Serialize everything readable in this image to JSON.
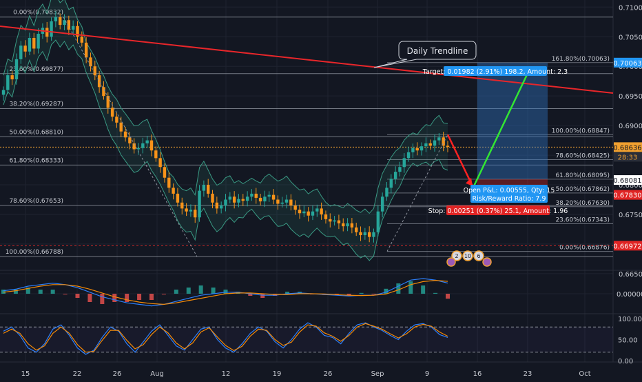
{
  "colors": {
    "background": "#131722",
    "grid": "#1f2330",
    "axis_text": "#c7cad1",
    "candle_up": "#26a69a",
    "candle_down": "#f7931a",
    "trendline": "#e8262a",
    "bollinger": "#3a9a84",
    "fib_line": "#8f949e",
    "price_tag": "#2a2e39",
    "target_box": "#2f6fb8",
    "target_label": "#2196f3",
    "stop_label": "#e02424",
    "green_arrow": "#33e633",
    "red_arrow": "#ff2222",
    "macd_line": "#2d7ff9",
    "signal_line": "#f58a07",
    "stoch_k": "#2d7ff9",
    "stoch_d": "#f58a07"
  },
  "chart_data": [
    {
      "type": "candlestick",
      "pair_panel": "price",
      "x_ticks": [
        "15",
        "22",
        "26",
        "Aug",
        "12",
        "19",
        "26",
        "Sep",
        "9",
        "16",
        "23",
        "Oct"
      ],
      "y_ticks": [
        "0.71000",
        "0.70500",
        "0.70000",
        "0.69500",
        "0.69000",
        "0.68500",
        "0.68000",
        "0.67500",
        "0.67000",
        "0.66500"
      ],
      "ylim": [
        0.6658,
        0.7112
      ],
      "close_series": [
        0.696,
        0.6985,
        0.6978,
        0.7012,
        0.7035,
        0.7025,
        0.7048,
        0.703,
        0.7055,
        0.7065,
        0.705,
        0.7076,
        0.7083,
        0.707,
        0.7078,
        0.7062,
        0.7068,
        0.705,
        0.704,
        0.7015,
        0.7,
        0.6985,
        0.6965,
        0.695,
        0.693,
        0.6915,
        0.6905,
        0.689,
        0.688,
        0.687,
        0.686,
        0.6862,
        0.687,
        0.6875,
        0.6858,
        0.6845,
        0.683,
        0.6812,
        0.6795,
        0.6785,
        0.677,
        0.676,
        0.6755,
        0.6758,
        0.6745,
        0.679,
        0.68,
        0.6785,
        0.677,
        0.676,
        0.6765,
        0.6775,
        0.678,
        0.677,
        0.6776,
        0.6773,
        0.678,
        0.6785,
        0.6778,
        0.6772,
        0.678,
        0.6783,
        0.6775,
        0.6768,
        0.677,
        0.6775,
        0.6765,
        0.6758,
        0.6752,
        0.6755,
        0.6748,
        0.6755,
        0.676,
        0.675,
        0.6742,
        0.6738,
        0.674,
        0.6735,
        0.673,
        0.6735,
        0.6728,
        0.672,
        0.6715,
        0.672,
        0.6712,
        0.672,
        0.6755,
        0.678,
        0.6795,
        0.681,
        0.6822,
        0.683,
        0.6845,
        0.6855,
        0.6862,
        0.6858,
        0.6865,
        0.687,
        0.6866,
        0.6875,
        0.688,
        0.6866,
        0.6864
      ],
      "title": "",
      "xlabel": "",
      "ylabel": "",
      "grid": true,
      "legend": "none"
    },
    {
      "type": "line",
      "pair_panel": "macd",
      "y_ticks": [
        "0.00000"
      ],
      "series": [
        {
          "values": [
            0.2,
            0.3,
            0.5,
            0.6,
            0.7,
            0.6,
            0.4,
            0.1,
            -0.2,
            -0.4,
            -0.6,
            -0.7,
            -0.8,
            -0.7,
            -0.5,
            -0.3,
            -0.1,
            0.0,
            0.1,
            0.1,
            0.0,
            -0.1,
            -0.1,
            0.0,
            0.05,
            0.0,
            -0.05,
            -0.1,
            -0.15,
            -0.1,
            -0.1,
            0.1,
            0.5,
            0.9,
            1.0,
            0.9,
            0.7
          ]
        },
        {
          "values": [
            0.1,
            0.2,
            0.35,
            0.5,
            0.6,
            0.6,
            0.5,
            0.3,
            0.05,
            -0.2,
            -0.4,
            -0.55,
            -0.65,
            -0.7,
            -0.6,
            -0.45,
            -0.3,
            -0.15,
            0.0,
            0.05,
            0.05,
            0.0,
            -0.05,
            -0.05,
            0.0,
            0.0,
            -0.02,
            -0.06,
            -0.1,
            -0.12,
            -0.1,
            -0.02,
            0.25,
            0.6,
            0.8,
            0.88,
            0.82
          ]
        }
      ],
      "legend": "none"
    },
    {
      "type": "line",
      "pair_panel": "stochastic",
      "y_ticks": [
        "100.00",
        "50.00",
        "0.00"
      ],
      "ylim": [
        0,
        100
      ],
      "series": [
        {
          "values": [
            70,
            80,
            60,
            30,
            20,
            40,
            75,
            85,
            60,
            30,
            15,
            25,
            55,
            80,
            70,
            40,
            20,
            45,
            70,
            85,
            60,
            35,
            25,
            50,
            75,
            80,
            50,
            30,
            20,
            40,
            65,
            80,
            70,
            45,
            30,
            50,
            75,
            90,
            80,
            60,
            55,
            40,
            65,
            85,
            90,
            80,
            72,
            60,
            50,
            70,
            85,
            88,
            80,
            62,
            55
          ]
        },
        {
          "values": [
            65,
            75,
            65,
            40,
            25,
            35,
            65,
            80,
            65,
            38,
            20,
            22,
            48,
            72,
            72,
            48,
            28,
            38,
            62,
            80,
            66,
            42,
            28,
            42,
            68,
            78,
            56,
            36,
            24,
            34,
            58,
            75,
            72,
            50,
            36,
            44,
            68,
            85,
            82,
            66,
            58,
            46,
            60,
            80,
            88,
            82,
            75,
            64,
            54,
            64,
            80,
            86,
            82,
            68,
            58
          ]
        }
      ],
      "legend": "none"
    }
  ],
  "price_tags": {
    "current": "0.68636",
    "countdown": "28:33",
    "target": "0.70063",
    "fib_618": "0.68081",
    "stop": "0.67830",
    "low": "0.66972"
  },
  "annotations": {
    "trendline_label": "Daily Trendline",
    "target_label": "Target: 0.01982 (2.91%) 198.2, Amount: 2.3",
    "open_pnl_label": "Open P&L: 0.00555, Qty: 15",
    "risk_reward_label": "Risk/Reward Ratio: 7.9",
    "stop_label": "Stop: 0.00251 (0.37%) 25.1, Amount: 1.96",
    "event_badges": [
      "2",
      "10",
      "6"
    ]
  },
  "fib_left": [
    {
      "label": "0.00%(0.70832)",
      "price": 0.70832
    },
    {
      "label": "23.60%(0.69877)",
      "price": 0.69877
    },
    {
      "label": "38.20%(0.69287)",
      "price": 0.69287
    },
    {
      "label": "50.00%(0.68810)",
      "price": 0.6881
    },
    {
      "label": "61.80%(0.68333)",
      "price": 0.68333
    },
    {
      "label": "78.60%(0.67653)",
      "price": 0.67653
    },
    {
      "label": "100.00%(0.66788)",
      "price": 0.66788
    }
  ],
  "fib_right": [
    {
      "label": "161.80%(0.70063)",
      "price": 0.70063
    },
    {
      "label": "100.00%(0.68847)",
      "price": 0.68847
    },
    {
      "label": "78.60%(0.68425)",
      "price": 0.68425
    },
    {
      "label": "61.80%(0.68095)",
      "price": 0.68095
    },
    {
      "label": "50.00%(0.67862)",
      "price": 0.67862
    },
    {
      "label": "38.20%(0.67630)",
      "price": 0.6763
    },
    {
      "label": "23.60%(0.67343)",
      "price": 0.67343
    },
    {
      "label": "0.00%(0.66876)",
      "price": 0.66876
    }
  ]
}
